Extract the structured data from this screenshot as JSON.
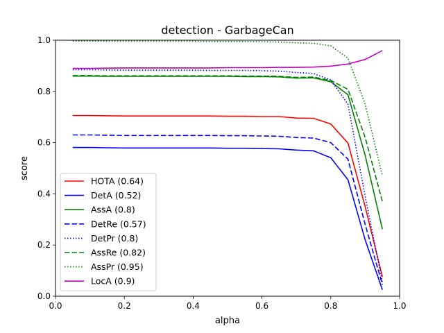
{
  "chart_data": {
    "type": "line",
    "title": "detection - GarbageCan",
    "xlabel": "alpha",
    "ylabel": "score",
    "xlim": [
      0.0,
      1.0
    ],
    "ylim": [
      0.0,
      1.0
    ],
    "xticks": [
      "0.0",
      "0.2",
      "0.4",
      "0.6",
      "0.8",
      "1.0"
    ],
    "yticks": [
      "0.0",
      "0.2",
      "0.4",
      "0.6",
      "0.8",
      "1.0"
    ],
    "grid": false,
    "legend_position": "lower-left",
    "x": [
      0.05,
      0.1,
      0.15,
      0.2,
      0.25,
      0.3,
      0.35,
      0.4,
      0.45,
      0.5,
      0.55,
      0.6,
      0.65,
      0.7,
      0.75,
      0.8,
      0.85,
      0.9,
      0.95
    ],
    "series": [
      {
        "name": "HOTA (0.64)",
        "color": "#ff0000",
        "dash": "solid",
        "values": [
          0.706,
          0.706,
          0.705,
          0.704,
          0.704,
          0.704,
          0.704,
          0.704,
          0.704,
          0.703,
          0.703,
          0.702,
          0.702,
          0.696,
          0.695,
          0.673,
          0.598,
          0.35,
          0.075
        ]
      },
      {
        "name": "DetA (0.52)",
        "color": "#0000ff",
        "dash": "solid",
        "values": [
          0.581,
          0.581,
          0.58,
          0.579,
          0.579,
          0.579,
          0.579,
          0.579,
          0.579,
          0.578,
          0.578,
          0.577,
          0.576,
          0.571,
          0.568,
          0.541,
          0.455,
          0.22,
          0.025
        ]
      },
      {
        "name": "AssA (0.8)",
        "color": "#008000",
        "dash": "solid",
        "values": [
          0.86,
          0.86,
          0.859,
          0.859,
          0.859,
          0.859,
          0.859,
          0.859,
          0.859,
          0.859,
          0.858,
          0.858,
          0.857,
          0.852,
          0.853,
          0.838,
          0.787,
          0.55,
          0.262
        ]
      },
      {
        "name": "DetRe (0.57)",
        "color": "#0000ff",
        "dash": "dashed",
        "values": [
          0.63,
          0.63,
          0.629,
          0.628,
          0.628,
          0.628,
          0.628,
          0.628,
          0.628,
          0.627,
          0.627,
          0.626,
          0.625,
          0.62,
          0.618,
          0.6,
          0.535,
          0.28,
          0.045
        ]
      },
      {
        "name": "DetPr (0.8)",
        "color": "#0000ff",
        "dash": "dotted",
        "values": [
          0.885,
          0.885,
          0.884,
          0.883,
          0.883,
          0.883,
          0.883,
          0.883,
          0.882,
          0.882,
          0.882,
          0.881,
          0.879,
          0.874,
          0.87,
          0.845,
          0.75,
          0.39,
          0.055
        ]
      },
      {
        "name": "AssRe (0.82)",
        "color": "#008000",
        "dash": "dashed",
        "values": [
          0.862,
          0.862,
          0.861,
          0.861,
          0.861,
          0.861,
          0.861,
          0.861,
          0.861,
          0.861,
          0.86,
          0.86,
          0.859,
          0.855,
          0.856,
          0.843,
          0.808,
          0.62,
          0.37
        ]
      },
      {
        "name": "AssPr (0.95)",
        "color": "#008000",
        "dash": "dotted",
        "values": [
          0.997,
          0.997,
          0.996,
          0.996,
          0.996,
          0.996,
          0.996,
          0.996,
          0.995,
          0.995,
          0.995,
          0.994,
          0.993,
          0.99,
          0.988,
          0.978,
          0.93,
          0.75,
          0.47
        ]
      },
      {
        "name": "LocA (0.9)",
        "color": "#bf00bf",
        "dash": "solid",
        "values": [
          0.89,
          0.89,
          0.891,
          0.892,
          0.892,
          0.892,
          0.892,
          0.892,
          0.892,
          0.893,
          0.893,
          0.893,
          0.894,
          0.894,
          0.895,
          0.899,
          0.907,
          0.925,
          0.96
        ]
      }
    ]
  }
}
